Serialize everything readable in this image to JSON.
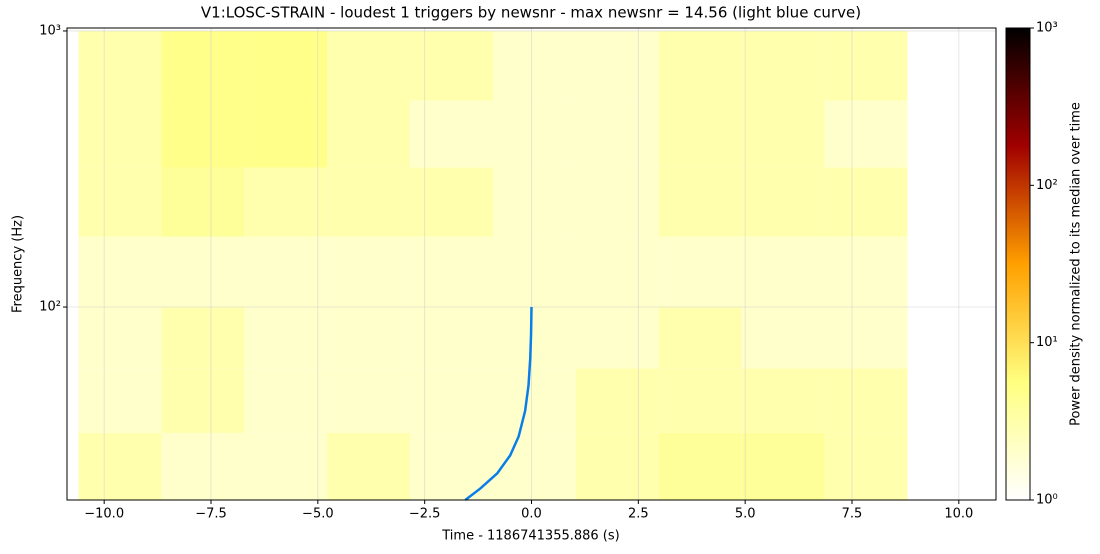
{
  "chart_data": {
    "type": "heatmap",
    "title": "V1:LOSC-STRAIN - loudest 1 triggers by newsnr - max newsnr = 14.56 (light blue curve)",
    "xlabel": "Time - 1186741355.886 (s)",
    "ylabel": "Frequency (Hz)",
    "xlim": [
      -10.87,
      10.87
    ],
    "xticks": [
      {
        "value": -10,
        "label": "−10.0"
      },
      {
        "value": -7.5,
        "label": "−7.5"
      },
      {
        "value": -5,
        "label": "−5.0"
      },
      {
        "value": -2.5,
        "label": "−2.5"
      },
      {
        "value": 0,
        "label": "0.0"
      },
      {
        "value": 2.5,
        "label": "2.5"
      },
      {
        "value": 5,
        "label": "5.0"
      },
      {
        "value": 7.5,
        "label": "7.5"
      },
      {
        "value": 10,
        "label": "10.0"
      }
    ],
    "ylim": [
      20,
      1025
    ],
    "yscale": "log",
    "yticks": [
      {
        "value": 100,
        "label": "10²"
      },
      {
        "value": 1000,
        "label": "10³"
      }
    ],
    "grid": true,
    "x_bins": [
      -10.6,
      -8.66,
      -6.72,
      -4.78,
      -2.84,
      -0.9,
      1.04,
      2.98,
      4.92,
      6.86,
      8.8
    ],
    "y_bins": [
      20,
      35,
      60,
      100,
      180,
      320,
      560,
      1000
    ],
    "z": [
      [
        3,
        2,
        2,
        3,
        2,
        2,
        3,
        4,
        4,
        3
      ],
      [
        2,
        3,
        2,
        2,
        2,
        2,
        3,
        3,
        3,
        3
      ],
      [
        2,
        3,
        2,
        2,
        2,
        2,
        2,
        3,
        2,
        2
      ],
      [
        2,
        2,
        2,
        2,
        2,
        2,
        2,
        2,
        2,
        2
      ],
      [
        3,
        4,
        3,
        3,
        3,
        2,
        2,
        3,
        3,
        3
      ],
      [
        3,
        5,
        5,
        3,
        2,
        2,
        2,
        3,
        3,
        2
      ],
      [
        3,
        5,
        5,
        3,
        3,
        2,
        2,
        3,
        3,
        3
      ]
    ],
    "colormap": [
      "#ffffff",
      "#ffff80",
      "#ffa000",
      "#a00000",
      "#000000"
    ],
    "colorbar_label": "Power density normalized to its median over time",
    "colorbar_lim": [
      1,
      1000
    ],
    "colorbar_ticks": [
      {
        "value": 1,
        "label": "10⁰"
      },
      {
        "value": 10,
        "label": "10¹"
      },
      {
        "value": 100,
        "label": "10²"
      },
      {
        "value": 1000,
        "label": "10³"
      }
    ],
    "series": [
      {
        "type": "line",
        "color": "#0a7ee8",
        "x": [
          -1.55,
          -1.2,
          -0.8,
          -0.5,
          -0.3,
          -0.15,
          -0.07,
          -0.03,
          -0.01,
          0
        ],
        "values": [
          20,
          22,
          25,
          29,
          34,
          42,
          52,
          65,
          80,
          100
        ]
      }
    ]
  }
}
